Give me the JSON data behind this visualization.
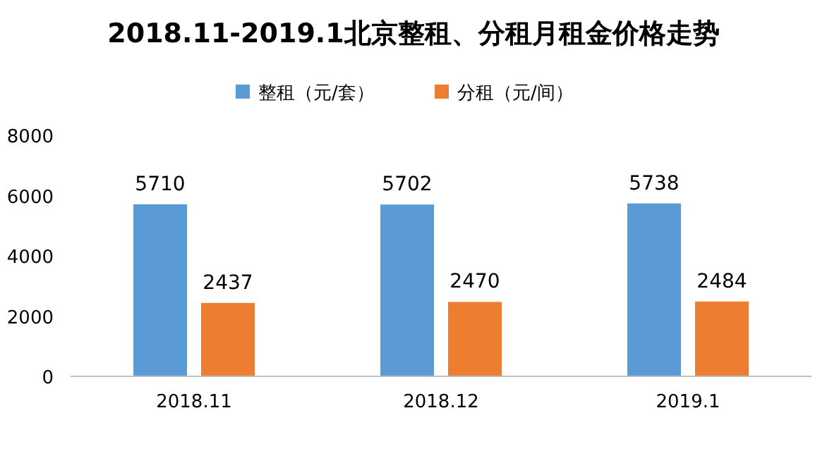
{
  "chart_data": {
    "type": "bar",
    "title": "2018.11-2019.1北京整租、分租月租金价格走势",
    "categories": [
      "2018.11",
      "2018.12",
      "2019.1"
    ],
    "series": [
      {
        "name": "整租（元/套）",
        "color": "#5b9bd5",
        "values": [
          5710,
          5702,
          5738
        ]
      },
      {
        "name": "分租（元/间）",
        "color": "#ed7d31",
        "values": [
          2437,
          2470,
          2484
        ]
      }
    ],
    "ylim": [
      0,
      8000
    ],
    "yticks": [
      0,
      2000,
      4000,
      6000,
      8000
    ],
    "data_labels": true,
    "legend": "top"
  }
}
